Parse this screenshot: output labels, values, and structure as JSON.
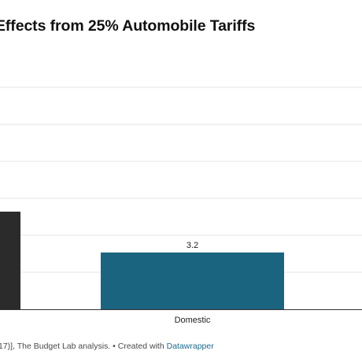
{
  "title": "Effects from 25% Automobile Tariffs",
  "footer": {
    "source_text": "17)], The Budget Lab analysis. • Created with ",
    "link_text": "Datawrapper"
  },
  "colors": {
    "dark_bar": "#2b2b2b",
    "domestic_bar": "#1a6480",
    "grid": "#e4e4e4",
    "axis": "#333333",
    "link": "#1d6a8c"
  },
  "chart_data": {
    "type": "bar",
    "categories": [
      "",
      "Domestic"
    ],
    "values": [
      5.5,
      3.2
    ],
    "value_labels": [
      "",
      "3.2"
    ],
    "ylim": [
      0,
      12.5
    ],
    "grid": true,
    "xlabel": "",
    "ylabel": ""
  }
}
